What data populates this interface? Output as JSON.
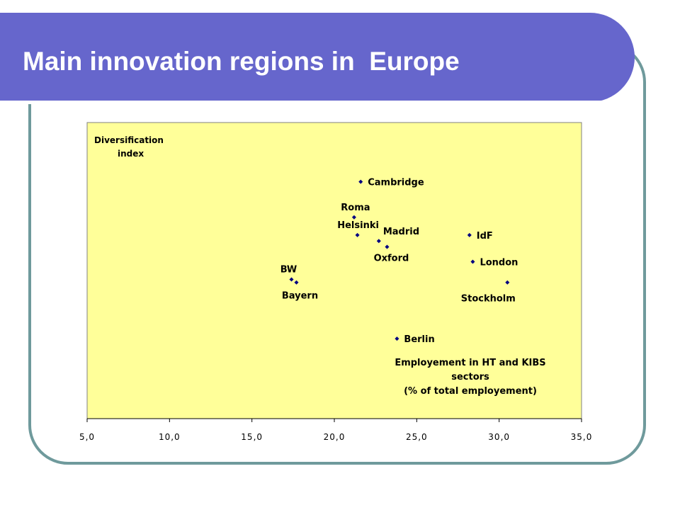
{
  "slide": {
    "title": "Main innovation regions in  Europe"
  },
  "colors": {
    "banner": "#6666cc",
    "frame": "#6f9a9c",
    "plot_background": "#ffff99",
    "marker": "#000080"
  },
  "chart_data": {
    "type": "scatter",
    "title": "",
    "ylabel": "Diversification\n        index",
    "xlabel_lines": [
      "Employement in HT and KIBS",
      "sectors",
      "(% of total employement)"
    ],
    "xlim": [
      5.0,
      35.0
    ],
    "xticks": [
      "5,0",
      "10,0",
      "15,0",
      "20,0",
      "25,0",
      "30,0",
      "35,0"
    ],
    "y_axis_labels": "none",
    "grid": false,
    "points": [
      {
        "label": "Cambridge",
        "x": 21.6,
        "y": 0.8
      },
      {
        "label": "Roma",
        "x": 21.2,
        "y": 0.68
      },
      {
        "label": "Helsinki",
        "x": 21.4,
        "y": 0.62
      },
      {
        "label": "Madrid",
        "x": 22.7,
        "y": 0.6
      },
      {
        "label": "Oxford",
        "x": 23.2,
        "y": 0.58
      },
      {
        "label": "IdF",
        "x": 28.2,
        "y": 0.62
      },
      {
        "label": "London",
        "x": 28.4,
        "y": 0.53
      },
      {
        "label": "Stockholm",
        "x": 30.5,
        "y": 0.46
      },
      {
        "label": "BW",
        "x": 17.4,
        "y": 0.47
      },
      {
        "label": "Bayern",
        "x": 17.7,
        "y": 0.46
      },
      {
        "label": "Berlin",
        "x": 23.8,
        "y": 0.27
      }
    ]
  }
}
